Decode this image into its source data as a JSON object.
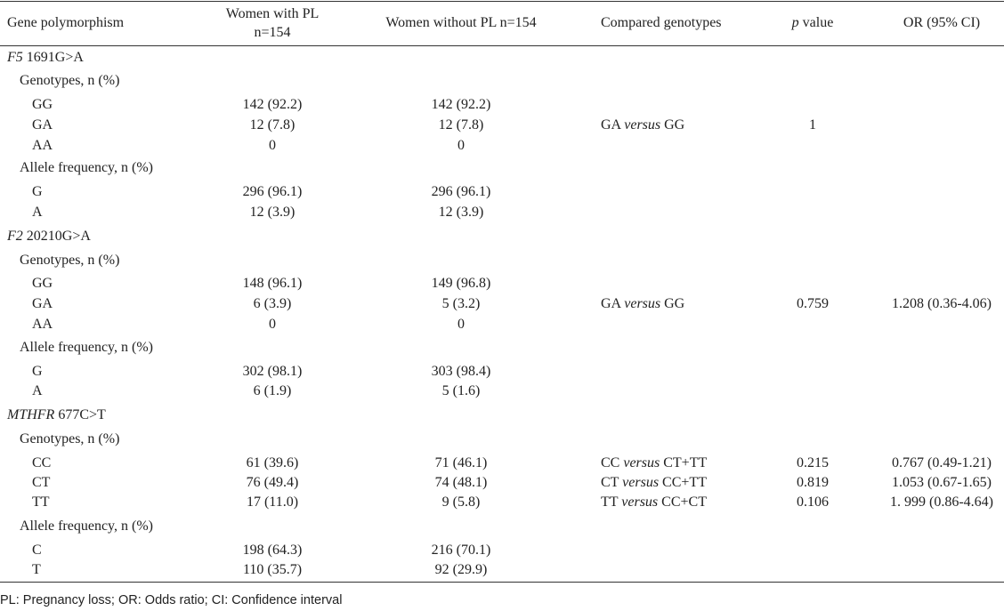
{
  "header": {
    "gene": "Gene polymorphism",
    "with_pl_1": "Women with PL",
    "with_pl_2": "n=154",
    "without_pl": "Women without PL n=154",
    "compared": "Compared genotypes",
    "p_italic": "p",
    "p_rest": " value",
    "or": "OR (95% CI)"
  },
  "labels": {
    "genotypes": "Genotypes, n (%)",
    "allele": "Allele frequency, n (%)",
    "versus": "versus"
  },
  "f5": {
    "gene": "F5",
    "variant": " 1691G>A",
    "genotypes": [
      {
        "g": "GG",
        "with": "142 (92.2)",
        "without": "142 (92.2)"
      },
      {
        "g": "GA",
        "with": "12 (7.8)",
        "without": "12 (7.8)"
      },
      {
        "g": "AA",
        "with": "0",
        "without": "0"
      }
    ],
    "alleles": [
      {
        "a": "G",
        "with": "296 (96.1)",
        "without": "296 (96.1)"
      },
      {
        "a": "A",
        "with": "12 (3.9)",
        "without": "12 (3.9)"
      }
    ],
    "cmp": {
      "left": "GA",
      "right": "GG",
      "p": "1",
      "or": ""
    }
  },
  "f2": {
    "gene": "F2",
    "variant": " 20210G>A",
    "genotypes": [
      {
        "g": "GG",
        "with": "148 (96.1)",
        "without": "149 (96.8)"
      },
      {
        "g": "GA",
        "with": "6 (3.9)",
        "without": "5 (3.2)"
      },
      {
        "g": "AA",
        "with": "0",
        "without": "0"
      }
    ],
    "alleles": [
      {
        "a": "G",
        "with": "302 (98.1)",
        "without": "303 (98.4)"
      },
      {
        "a": "A",
        "with": "6 (1.9)",
        "without": "5 (1.6)"
      }
    ],
    "cmp": {
      "left": "GA",
      "right": "GG",
      "p": "0.759",
      "or": "1.208 (0.36-4.06)"
    }
  },
  "mthfr": {
    "gene": "MTHFR",
    "variant": " 677C>T",
    "genotypes": [
      {
        "g": "CC",
        "with": "61 (39.6)",
        "without": "71 (46.1)",
        "cmp_left": "CC",
        "cmp_right": "CT+TT",
        "p": "0.215",
        "or": "0.767 (0.49-1.21)"
      },
      {
        "g": "CT",
        "with": "76 (49.4)",
        "without": "74 (48.1)",
        "cmp_left": "CT",
        "cmp_right": "CC+TT",
        "p": "0.819",
        "or": "1.053 (0.67-1.65)"
      },
      {
        "g": "TT",
        "with": "17 (11.0)",
        "without": "9 (5.8)",
        "cmp_left": "TT",
        "cmp_right": "CC+CT",
        "p": "0.106",
        "or": "1. 999 (0.86-4.64)"
      }
    ],
    "alleles": [
      {
        "a": "C",
        "with": "198 (64.3)",
        "without": "216 (70.1)"
      },
      {
        "a": "T",
        "with": "110 (35.7)",
        "without": "92 (29.9)"
      }
    ]
  },
  "footnote": "PL: Pregnancy loss; OR: Odds ratio; CI: Confidence interval"
}
